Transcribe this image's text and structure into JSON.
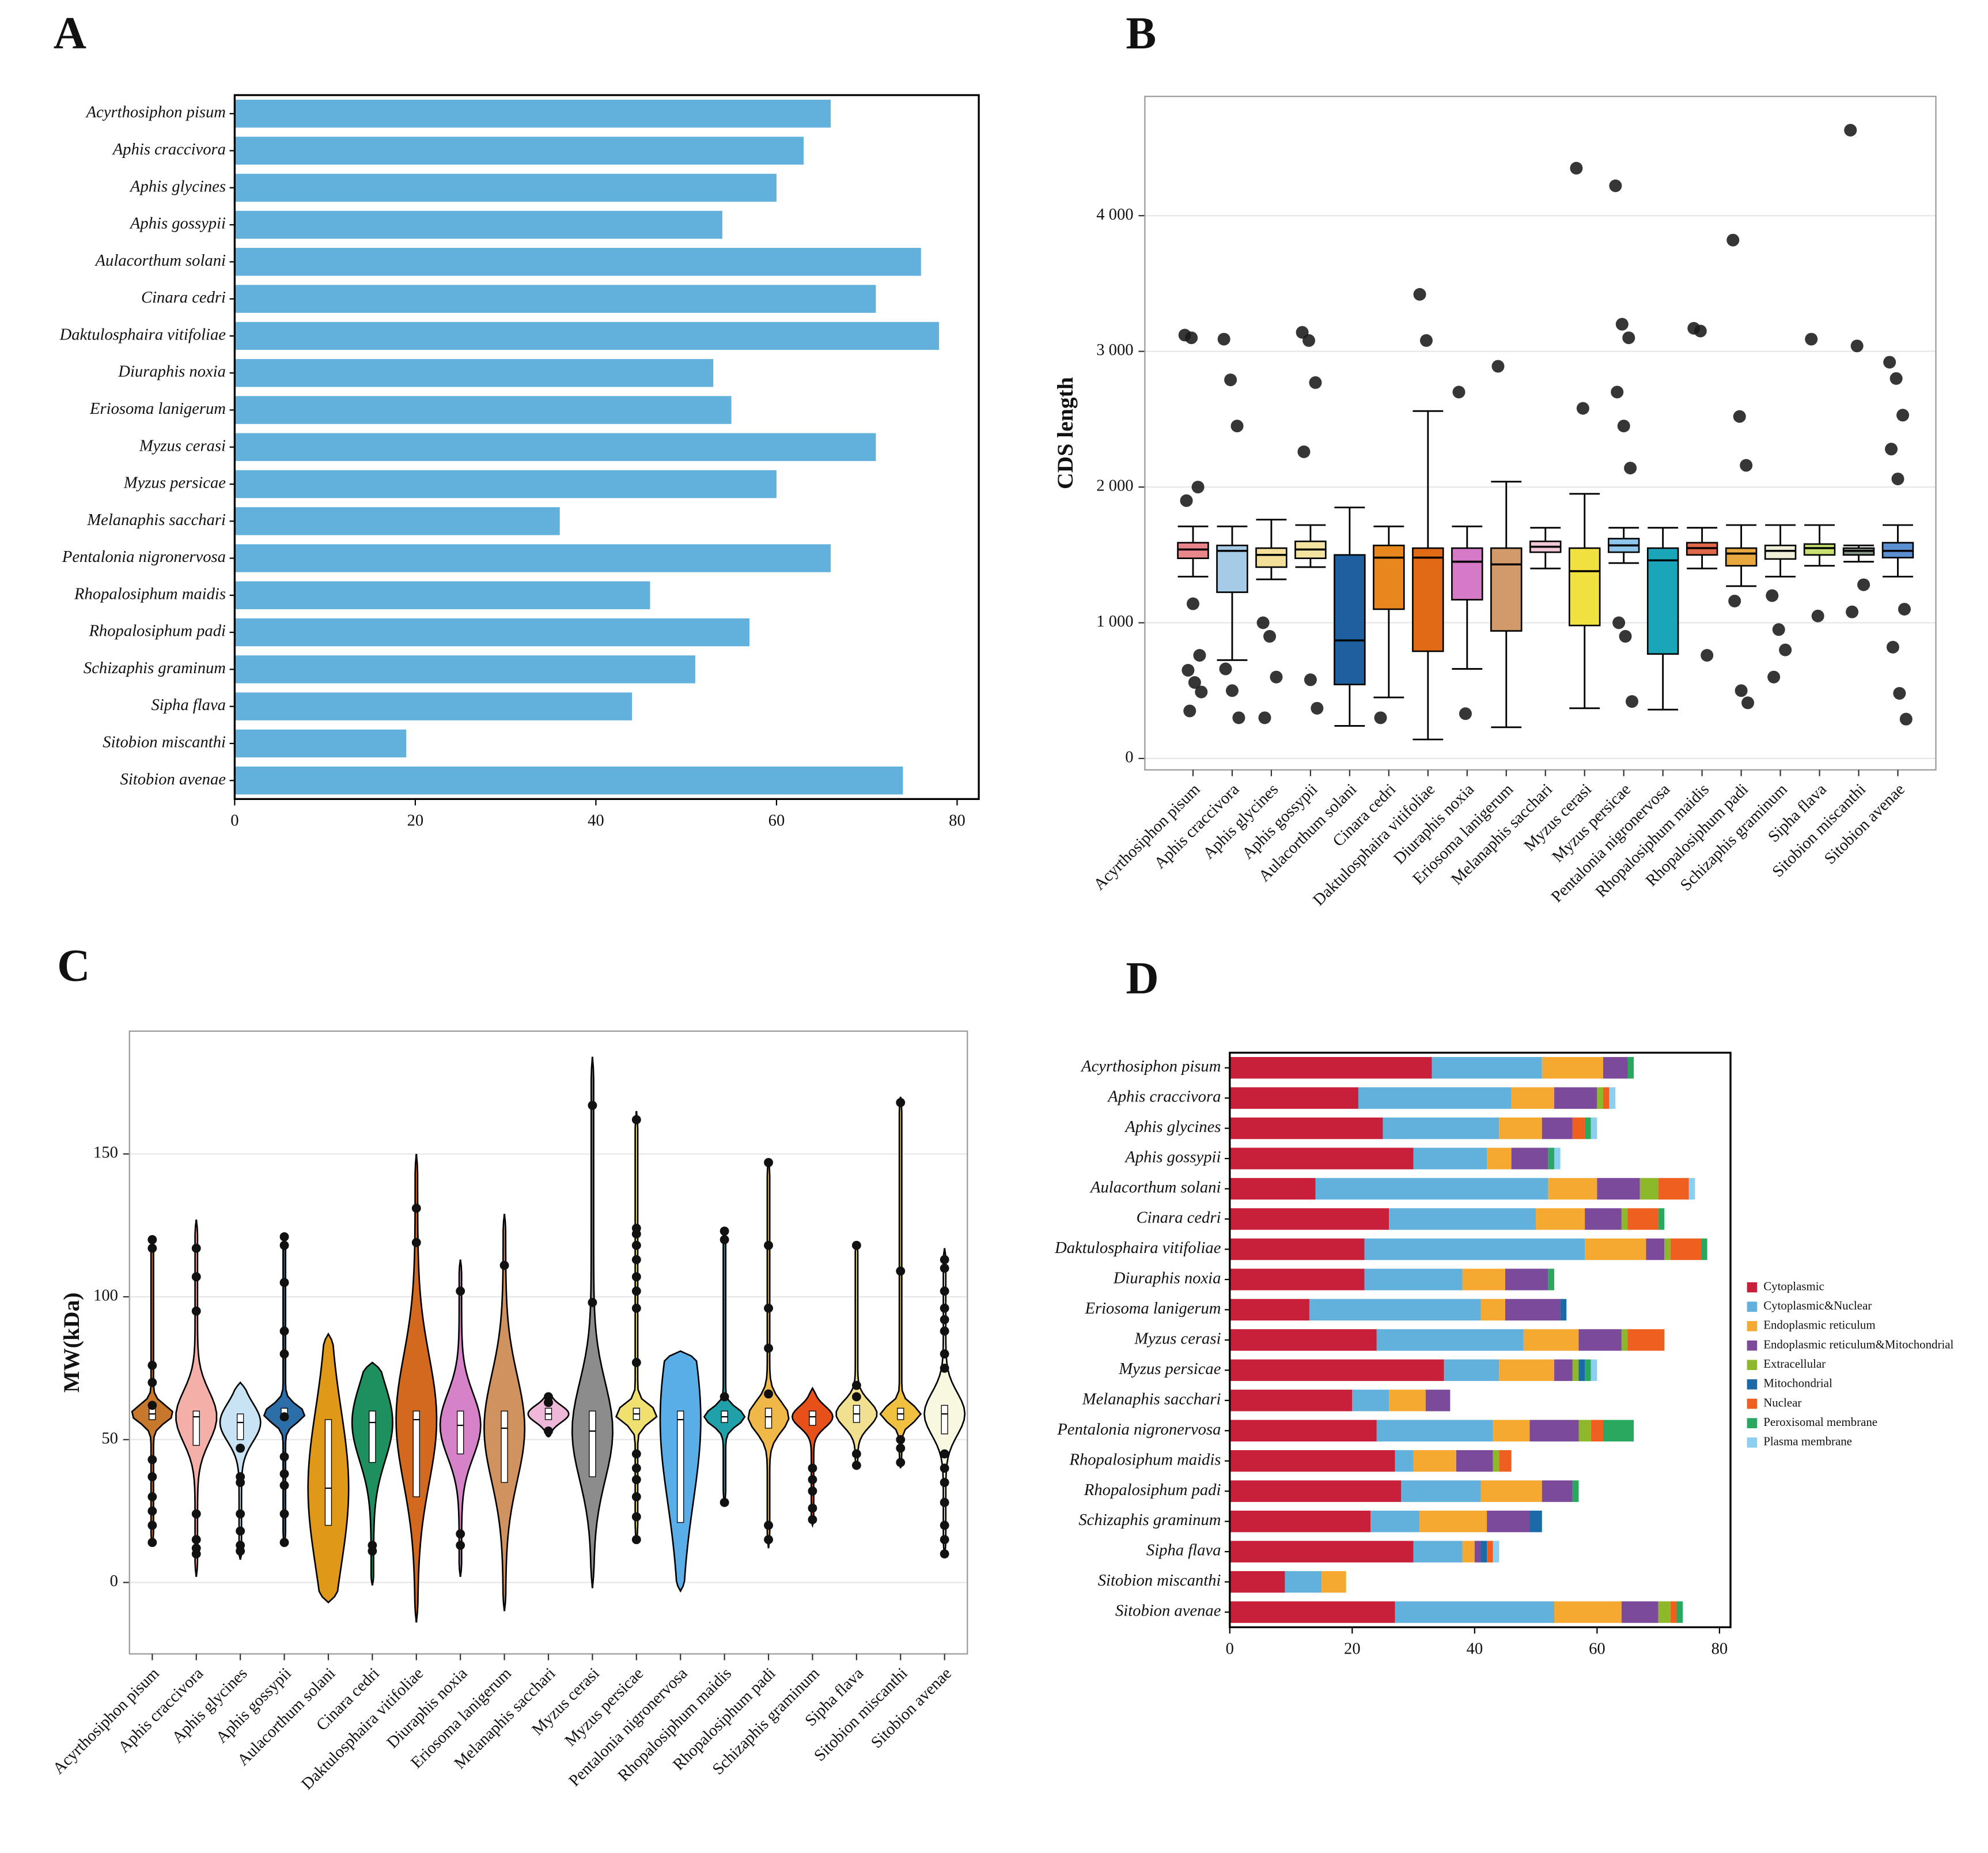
{
  "chart_data": [
    {
      "type": "bar",
      "orientation": "horizontal",
      "label": "A",
      "color": "#62b0dc",
      "categories": [
        "Acyrthosiphon pisum",
        "Aphis craccivora",
        "Aphis glycines",
        "Aphis gossypii",
        "Aulacorthum solani",
        "Cinara cedri",
        "Daktulosphaira vitifoliae",
        "Diuraphis noxia",
        "Eriosoma lanigerum",
        "Myzus cerasi",
        "Myzus persicae",
        "Melanaphis sacchari",
        "Pentalonia nigronervosa",
        "Rhopalosiphum maidis",
        "Rhopalosiphum padi",
        "Schizaphis graminum",
        "Sipha flava",
        "Sitobion miscanthi",
        "Sitobion avenae"
      ],
      "values": [
        66,
        63,
        60,
        54,
        76,
        71,
        78,
        53,
        55,
        71,
        60,
        36,
        66,
        46,
        57,
        51,
        44,
        19,
        74
      ],
      "xlim": [
        0,
        82.4
      ],
      "xticks": [
        0,
        20,
        40,
        60,
        80
      ]
    },
    {
      "type": "box",
      "label": "B",
      "ylabel": "CDS length",
      "grid": true,
      "categories": [
        "Acyrthosiphon pisum",
        "Aphis craccivora",
        "Aphis glycines",
        "Aphis gossypii",
        "Aulacorthum solani",
        "Cinara cedri",
        "Daktulosphaira vitifoliae",
        "Diuraphis noxia",
        "Eriosoma lanigerum",
        "Melanaphis sacchari",
        "Myzus cerasi",
        "Myzus persicae",
        "Pentalonia nigronervosa",
        "Rhopalosiphum maidis",
        "Rhopalosiphum padi",
        "Schizaphis graminum",
        "Sipha flava",
        "Sitobion miscanthi",
        "Sitobion avenae"
      ],
      "colors": [
        "#e8868c",
        "#a6cbe6",
        "#f3df9a",
        "#f2e4a0",
        "#1f5fa0",
        "#e8871e",
        "#e06a16",
        "#d67ac7",
        "#d29a6a",
        "#f0c8d8",
        "#f0e040",
        "#8ec6ec",
        "#1aa6b8",
        "#e0684a",
        "#e8a840",
        "#f0f0d8",
        "#c8e070",
        "#8a9a8a",
        "#5b8fd0"
      ],
      "boxes": [
        {
          "whisker_low": 1340,
          "q1": 1475,
          "median": 1540,
          "q3": 1590,
          "whisker_high": 1710,
          "outliers": [
            3120,
            3100,
            2000,
            1900,
            1140,
            760,
            650,
            560,
            490,
            350
          ]
        },
        {
          "whisker_low": 725,
          "q1": 1225,
          "median": 1530,
          "q3": 1570,
          "whisker_high": 1710,
          "outliers": [
            3090,
            2790,
            2450,
            660,
            500,
            300
          ]
        },
        {
          "whisker_low": 1320,
          "q1": 1410,
          "median": 1500,
          "q3": 1550,
          "whisker_high": 1760,
          "outliers": [
            1000,
            900,
            600,
            300
          ]
        },
        {
          "whisker_low": 1410,
          "q1": 1475,
          "median": 1540,
          "q3": 1600,
          "whisker_high": 1720,
          "outliers": [
            3140,
            3080,
            2770,
            2260,
            580,
            370
          ]
        },
        {
          "whisker_low": 240,
          "q1": 545,
          "median": 870,
          "q3": 1500,
          "whisker_high": 1850,
          "outliers": []
        },
        {
          "whisker_low": 450,
          "q1": 1100,
          "median": 1480,
          "q3": 1570,
          "whisker_high": 1710,
          "outliers": [
            300
          ]
        },
        {
          "whisker_low": 140,
          "q1": 790,
          "median": 1480,
          "q3": 1550,
          "whisker_high": 2560,
          "outliers": [
            3420,
            3080
          ]
        },
        {
          "whisker_low": 660,
          "q1": 1170,
          "median": 1450,
          "q3": 1550,
          "whisker_high": 1710,
          "outliers": [
            2700,
            330
          ]
        },
        {
          "whisker_low": 230,
          "q1": 940,
          "median": 1430,
          "q3": 1550,
          "whisker_high": 2040,
          "outliers": [
            2890
          ]
        },
        {
          "whisker_low": 1400,
          "q1": 1520,
          "median": 1560,
          "q3": 1600,
          "whisker_high": 1700,
          "outliers": []
        },
        {
          "whisker_low": 370,
          "q1": 980,
          "median": 1380,
          "q3": 1550,
          "whisker_high": 1950,
          "outliers": [
            4350,
            2580
          ]
        },
        {
          "whisker_low": 1440,
          "q1": 1520,
          "median": 1570,
          "q3": 1620,
          "whisker_high": 1700,
          "outliers": [
            4220,
            3200,
            3100,
            2700,
            2450,
            2140,
            1000,
            900,
            420
          ]
        },
        {
          "whisker_low": 360,
          "q1": 770,
          "median": 1460,
          "q3": 1550,
          "whisker_high": 1700,
          "outliers": []
        },
        {
          "whisker_low": 1400,
          "q1": 1500,
          "median": 1550,
          "q3": 1590,
          "whisker_high": 1700,
          "outliers": [
            3170,
            3150,
            760
          ]
        },
        {
          "whisker_low": 1270,
          "q1": 1420,
          "median": 1510,
          "q3": 1550,
          "whisker_high": 1720,
          "outliers": [
            3820,
            2520,
            2160,
            1160,
            500,
            410
          ]
        },
        {
          "whisker_low": 1340,
          "q1": 1470,
          "median": 1530,
          "q3": 1570,
          "whisker_high": 1720,
          "outliers": [
            1200,
            950,
            800,
            600
          ]
        },
        {
          "whisker_low": 1420,
          "q1": 1500,
          "median": 1550,
          "q3": 1580,
          "whisker_high": 1720,
          "outliers": [
            3090,
            1050
          ]
        },
        {
          "whisker_low": 1450,
          "q1": 1500,
          "median": 1530,
          "q3": 1550,
          "whisker_high": 1570,
          "outliers": [
            4630,
            3040,
            1280,
            1080
          ]
        },
        {
          "whisker_low": 1340,
          "q1": 1480,
          "median": 1530,
          "q3": 1590,
          "whisker_high": 1720,
          "outliers": [
            2920,
            2800,
            2530,
            2280,
            2060,
            1100,
            820,
            480,
            290
          ]
        }
      ],
      "ylim": [
        -84,
        4879
      ],
      "yticks": [
        0,
        {
          "value": 1000,
          "label": "1 000"
        },
        {
          "value": 2000,
          "label": "2 000"
        },
        {
          "value": 3000,
          "label": "3 000"
        },
        {
          "value": 4000,
          "label": "4 000"
        }
      ]
    },
    {
      "type": "violin",
      "label": "C",
      "ylabel": "MW(kDa)",
      "grid": true,
      "categories": [
        "Acyrthosiphon pisum",
        "Aphis craccivora",
        "Aphis glycines",
        "Aphis gossypii",
        "Aulacorthum solani",
        "Cinara cedri",
        "Daktulosphaira vitifoliae",
        "Diuraphis noxia",
        "Eriosoma lanigerum",
        "Melanaphis sacchari",
        "Myzus cerasi",
        "Myzus persicae",
        "Pentalonia nigronervosa",
        "Rhopalosiphum maidis",
        "Rhopalosiphum padi",
        "Schizaphis graminum",
        "Sipha flava",
        "Sitobion miscanthi",
        "Sitobion avenae"
      ],
      "colors": [
        "#c8782c",
        "#f4b0a8",
        "#c8e4f4",
        "#2c6fa8",
        "#e09818",
        "#1e9060",
        "#d2691e",
        "#d682c8",
        "#d0925e",
        "#f0b8d8",
        "#8c8c8c",
        "#f0e070",
        "#5aaee8",
        "#20a0a8",
        "#f0b848",
        "#e8501a",
        "#f0e090",
        "#f0c040",
        "#f8f8e0"
      ],
      "violins": [
        {
          "min": 13,
          "q1": 57,
          "median": 59,
          "q3": 61,
          "max": 120,
          "points": [
            120,
            117,
            76,
            70,
            62,
            43,
            37,
            30,
            25,
            20,
            14
          ]
        },
        {
          "min": 2,
          "q1": 48,
          "median": 58,
          "q3": 60,
          "max": 127,
          "points": [
            117,
            107,
            95,
            24,
            15,
            12,
            10
          ]
        },
        {
          "min": 8,
          "q1": 50,
          "median": 56,
          "q3": 59,
          "max": 70,
          "points": [
            47,
            37,
            35,
            24,
            18,
            13,
            11
          ]
        },
        {
          "min": 13,
          "q1": 57,
          "median": 59,
          "q3": 61,
          "max": 122,
          "points": [
            121,
            118,
            105,
            88,
            80,
            58,
            44,
            38,
            34,
            24,
            14
          ]
        },
        {
          "min": -7,
          "q1": 20,
          "median": 33,
          "q3": 57,
          "max": 87,
          "points": []
        },
        {
          "min": -1,
          "q1": 42,
          "median": 56,
          "q3": 60,
          "max": 77,
          "points": [
            13,
            11
          ]
        },
        {
          "min": -14,
          "q1": 30,
          "median": 57,
          "q3": 60,
          "max": 150,
          "points": [
            131,
            119
          ]
        },
        {
          "min": 2,
          "q1": 45,
          "median": 55,
          "q3": 60,
          "max": 113,
          "points": [
            102,
            17,
            13
          ]
        },
        {
          "min": -10,
          "q1": 35,
          "median": 54,
          "q3": 60,
          "max": 129,
          "points": [
            111
          ]
        },
        {
          "min": 51,
          "q1": 57,
          "median": 59,
          "q3": 61,
          "max": 66,
          "points": [
            65,
            63,
            53
          ]
        },
        {
          "min": -2,
          "q1": 37,
          "median": 53,
          "q3": 60,
          "max": 184,
          "points": [
            167,
            98
          ]
        },
        {
          "min": 14,
          "q1": 57,
          "median": 59,
          "q3": 61,
          "max": 165,
          "points": [
            162,
            124,
            122,
            118,
            113,
            107,
            102,
            96,
            77,
            45,
            40,
            36,
            30,
            23,
            15
          ]
        },
        {
          "min": -3,
          "q1": 21,
          "median": 57,
          "q3": 60,
          "max": 81,
          "points": []
        },
        {
          "min": 28,
          "q1": 56,
          "median": 58,
          "q3": 60,
          "max": 124,
          "points": [
            123,
            120,
            65,
            28
          ]
        },
        {
          "min": 12,
          "q1": 54,
          "median": 58,
          "q3": 61,
          "max": 148,
          "points": [
            147,
            118,
            96,
            82,
            66,
            20,
            15
          ]
        },
        {
          "min": 20,
          "q1": 55,
          "median": 58,
          "q3": 60,
          "max": 68,
          "points": [
            40,
            36,
            32,
            26,
            22
          ]
        },
        {
          "min": 40,
          "q1": 56,
          "median": 59,
          "q3": 62,
          "max": 119,
          "points": [
            118,
            69,
            65,
            45,
            41
          ]
        },
        {
          "min": 40,
          "q1": 57,
          "median": 59,
          "q3": 61,
          "max": 170,
          "points": [
            168,
            109,
            50,
            47,
            42
          ]
        },
        {
          "min": 10,
          "q1": 52,
          "median": 59,
          "q3": 62,
          "max": 117,
          "points": [
            113,
            110,
            102,
            96,
            92,
            88,
            80,
            75,
            45,
            40,
            35,
            28,
            20,
            15,
            10
          ]
        }
      ],
      "ylim": [
        -25,
        193
      ],
      "yticks": [
        0,
        50,
        100,
        150
      ]
    },
    {
      "type": "stacked_bar",
      "orientation": "horizontal",
      "label": "D",
      "categories": [
        "Acyrthosiphon pisum",
        "Aphis craccivora",
        "Aphis glycines",
        "Aphis gossypii",
        "Aulacorthum solani",
        "Cinara cedri",
        "Daktulosphaira vitifoliae",
        "Diuraphis noxia",
        "Eriosoma lanigerum",
        "Myzus cerasi",
        "Myzus persicae",
        "Melanaphis sacchari",
        "Pentalonia nigronervosa",
        "Rhopalosiphum maidis",
        "Rhopalosiphum padi",
        "Schizaphis graminum",
        "Sipha flava",
        "Sitobion miscanthi",
        "Sitobion avenae"
      ],
      "series": [
        {
          "name": "Cytoplasmic",
          "color": "#c8203a",
          "values": [
            33,
            21,
            25,
            30,
            14,
            26,
            22,
            22,
            13,
            24,
            35,
            20,
            24,
            27,
            28,
            23,
            30,
            9,
            27
          ]
        },
        {
          "name": "Cytoplasmic&Nuclear",
          "color": "#62b0dc",
          "values": [
            18,
            25,
            19,
            12,
            38,
            24,
            36,
            16,
            28,
            24,
            9,
            6,
            19,
            3,
            13,
            8,
            8,
            6,
            26
          ]
        },
        {
          "name": "Endoplasmic reticulum",
          "color": "#f5a930",
          "values": [
            10,
            7,
            7,
            4,
            8,
            8,
            10,
            7,
            4,
            9,
            9,
            6,
            6,
            7,
            10,
            11,
            2,
            4,
            11
          ]
        },
        {
          "name": "Endoplasmic reticulum&Mitochondrial",
          "color": "#7b4a9a",
          "values": [
            4,
            7,
            5,
            6,
            7,
            6,
            3,
            7,
            9,
            7,
            3,
            4,
            8,
            6,
            5,
            7,
            1,
            0,
            6
          ]
        },
        {
          "name": "Extracellular",
          "color": "#8cb82a",
          "values": [
            0,
            1,
            0,
            0,
            3,
            1,
            1,
            0,
            0,
            1,
            1,
            0,
            2,
            1,
            0,
            0,
            0,
            0,
            2
          ]
        },
        {
          "name": "Mitochondrial",
          "color": "#1a6aa8",
          "values": [
            0,
            0,
            0,
            0,
            0,
            0,
            0,
            0,
            1,
            0,
            1,
            0,
            0,
            0,
            0,
            2,
            1,
            0,
            0
          ]
        },
        {
          "name": "Nuclear",
          "color": "#ef6020",
          "values": [
            0,
            1,
            2,
            0,
            5,
            5,
            5,
            0,
            0,
            6,
            0,
            0,
            2,
            2,
            0,
            0,
            1,
            0,
            1
          ]
        },
        {
          "name": "Peroxisomal membrane",
          "color": "#2aa860",
          "values": [
            1,
            0,
            1,
            1,
            0,
            1,
            1,
            1,
            0,
            0,
            1,
            0,
            5,
            0,
            1,
            0,
            0,
            0,
            1
          ]
        },
        {
          "name": "Plasma membrane",
          "color": "#8ccff0",
          "values": [
            0,
            1,
            1,
            1,
            1,
            0,
            0,
            0,
            0,
            0,
            1,
            0,
            0,
            0,
            0,
            0,
            1,
            0,
            0
          ]
        }
      ],
      "xlim": [
        0,
        81.8
      ],
      "xticks": [
        0,
        20,
        40,
        60,
        80
      ]
    }
  ]
}
